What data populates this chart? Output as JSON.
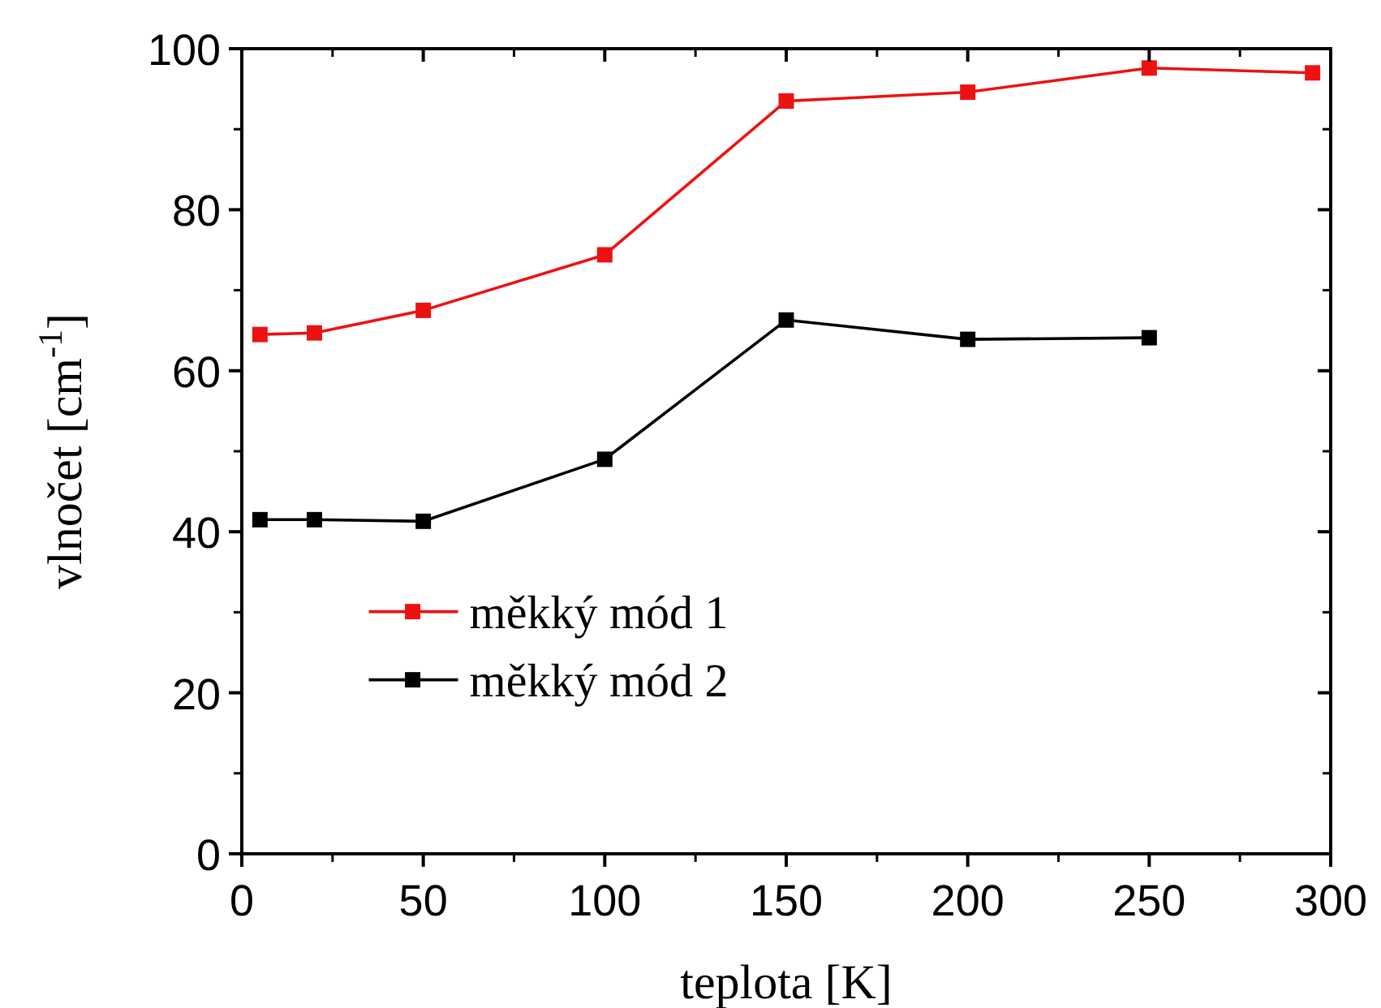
{
  "chart_data": {
    "type": "line",
    "xlabel": "teplota [K]",
    "ylabel": "vlnočet [cm$^{-1}$]",
    "x": [
      5,
      20,
      50,
      100,
      150,
      200,
      250,
      295
    ],
    "xlim": [
      0,
      300
    ],
    "ylim": [
      0,
      100
    ],
    "xticks": [
      0,
      50,
      100,
      150,
      200,
      250,
      300
    ],
    "yticks": [
      0,
      20,
      40,
      60,
      80,
      100
    ],
    "marker": "square",
    "legend": "bottom",
    "grid": false,
    "series": [
      {
        "name": "měkký mód 1",
        "color": "#ee1111",
        "values": [
          64.5,
          64.7,
          67.5,
          74.4,
          93.5,
          94.6,
          97.6,
          97.0
        ]
      },
      {
        "name": "měkký mód 2",
        "color": "#000000",
        "values": [
          41.5,
          41.5,
          41.3,
          49.0,
          66.3,
          63.9,
          64.1,
          null
        ]
      }
    ]
  }
}
